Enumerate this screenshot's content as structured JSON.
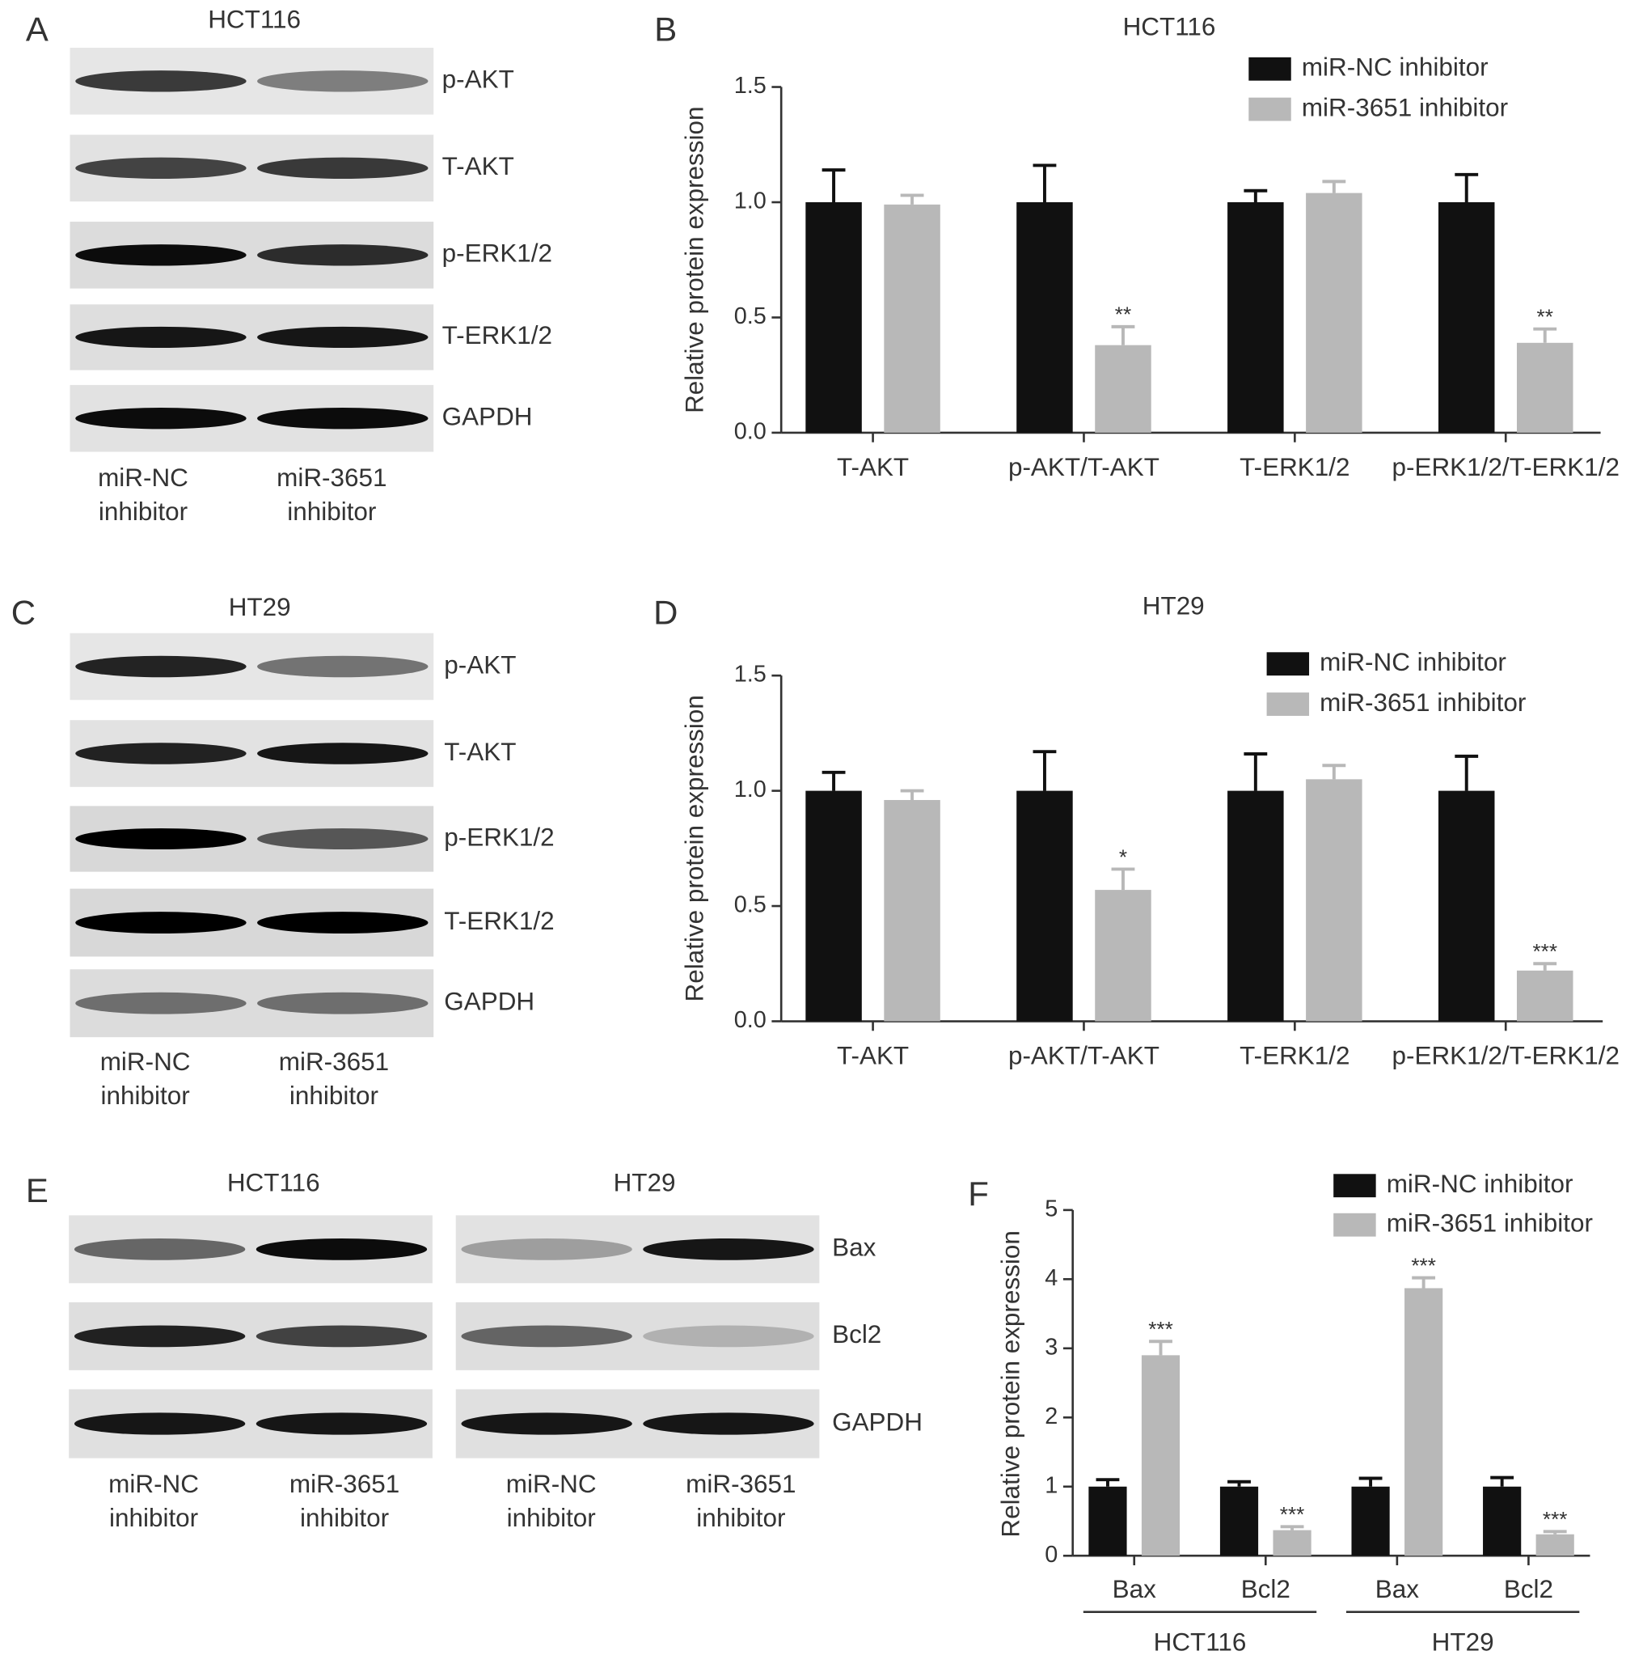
{
  "panel_labels": [
    "A",
    "B",
    "C",
    "D",
    "E",
    "F"
  ],
  "blots": [
    {
      "titles": [
        "HCT116"
      ],
      "rows": [
        "p-AKT",
        "T-AKT",
        "p-ERK1/2",
        "T-ERK1/2",
        "GAPDH"
      ],
      "lanes": [
        [
          "miR-NC",
          "inhibitor"
        ],
        [
          "miR-3651",
          "inhibitor"
        ]
      ]
    },
    {
      "titles": [
        "HT29"
      ],
      "rows": [
        "p-AKT",
        "T-AKT",
        "p-ERK1/2",
        "T-ERK1/2",
        "GAPDH"
      ],
      "lanes": [
        [
          "miR-NC",
          "inhibitor"
        ],
        [
          "miR-3651",
          "inhibitor"
        ]
      ]
    },
    {
      "titles": [
        "HCT116",
        "HT29"
      ],
      "rows": [
        "Bax",
        "Bcl2",
        "GAPDH"
      ],
      "lanes": [
        [
          "miR-NC",
          "inhibitor"
        ],
        [
          "miR-3651",
          "inhibitor"
        ],
        [
          "miR-NC",
          "inhibitor"
        ],
        [
          "miR-3651",
          "inhibitor"
        ]
      ]
    }
  ],
  "chart_data": [
    {
      "type": "bar",
      "title": "HCT116",
      "y_label": "Relative protein expression",
      "categories": [
        "T-AKT",
        "p-AKT/T-AKT",
        "T-ERK1/2",
        "p-ERK1/2/T-ERK1/2"
      ],
      "series": [
        {
          "name": "miR-NC inhibitor",
          "color": "#111111",
          "values": [
            1.0,
            1.0,
            1.0,
            1.0
          ],
          "errors": [
            0.14,
            0.16,
            0.05,
            0.12
          ],
          "significance": [
            null,
            null,
            null,
            null
          ]
        },
        {
          "name": "miR-3651 inhibitor",
          "color": "#b8b8b8",
          "values": [
            0.99,
            0.38,
            1.04,
            0.39
          ],
          "errors": [
            0.04,
            0.08,
            0.05,
            0.06
          ],
          "significance": [
            null,
            "**",
            null,
            "**"
          ]
        }
      ],
      "ylim": [
        0,
        1.5
      ],
      "yticks": [
        {
          "value": 0,
          "label": "0.0"
        },
        0.5,
        {
          "value": 1,
          "label": "1.0"
        },
        1.5
      ],
      "grid": false,
      "legend": "top-right"
    },
    {
      "type": "bar",
      "title": "HT29",
      "y_label": "Relative protein expression",
      "categories": [
        "T-AKT",
        "p-AKT/T-AKT",
        "T-ERK1/2",
        "p-ERK1/2/T-ERK1/2"
      ],
      "series": [
        {
          "name": "miR-NC inhibitor",
          "color": "#111111",
          "values": [
            1.0,
            1.0,
            1.0,
            1.0
          ],
          "errors": [
            0.08,
            0.17,
            0.16,
            0.15
          ],
          "significance": [
            null,
            null,
            null,
            null
          ]
        },
        {
          "name": "miR-3651 inhibitor",
          "color": "#b8b8b8",
          "values": [
            0.96,
            0.57,
            1.05,
            0.22
          ],
          "errors": [
            0.04,
            0.09,
            0.06,
            0.03
          ],
          "significance": [
            null,
            "*",
            null,
            "***"
          ]
        }
      ],
      "ylim": [
        0,
        1.5
      ],
      "yticks": [
        {
          "value": 0,
          "label": "0.0"
        },
        0.5,
        {
          "value": 1,
          "label": "1.0"
        },
        1.5
      ],
      "grid": false,
      "legend": "top-right"
    },
    {
      "type": "bar",
      "y_label": "Relative protein expression",
      "categories": [
        "Bax",
        "Bcl2",
        "Bax",
        "Bcl2"
      ],
      "groups": [
        "HCT116",
        "HT29"
      ],
      "series": [
        {
          "name": "miR-NC inhibitor",
          "color": "#111111",
          "values": [
            1.0,
            1.0,
            1.0,
            1.0
          ],
          "errors": [
            0.1,
            0.07,
            0.12,
            0.13
          ],
          "significance": [
            null,
            null,
            null,
            null
          ]
        },
        {
          "name": "miR-3651 inhibitor",
          "color": "#b8b8b8",
          "values": [
            2.9,
            0.37,
            3.87,
            0.31
          ],
          "errors": [
            0.2,
            0.05,
            0.15,
            0.04
          ],
          "significance": [
            "***",
            "***",
            "***",
            "***"
          ]
        }
      ],
      "ylim": [
        0,
        5
      ],
      "yticks": [
        0,
        1,
        2,
        3,
        4,
        5
      ],
      "grid": false,
      "legend": "top-right"
    }
  ]
}
